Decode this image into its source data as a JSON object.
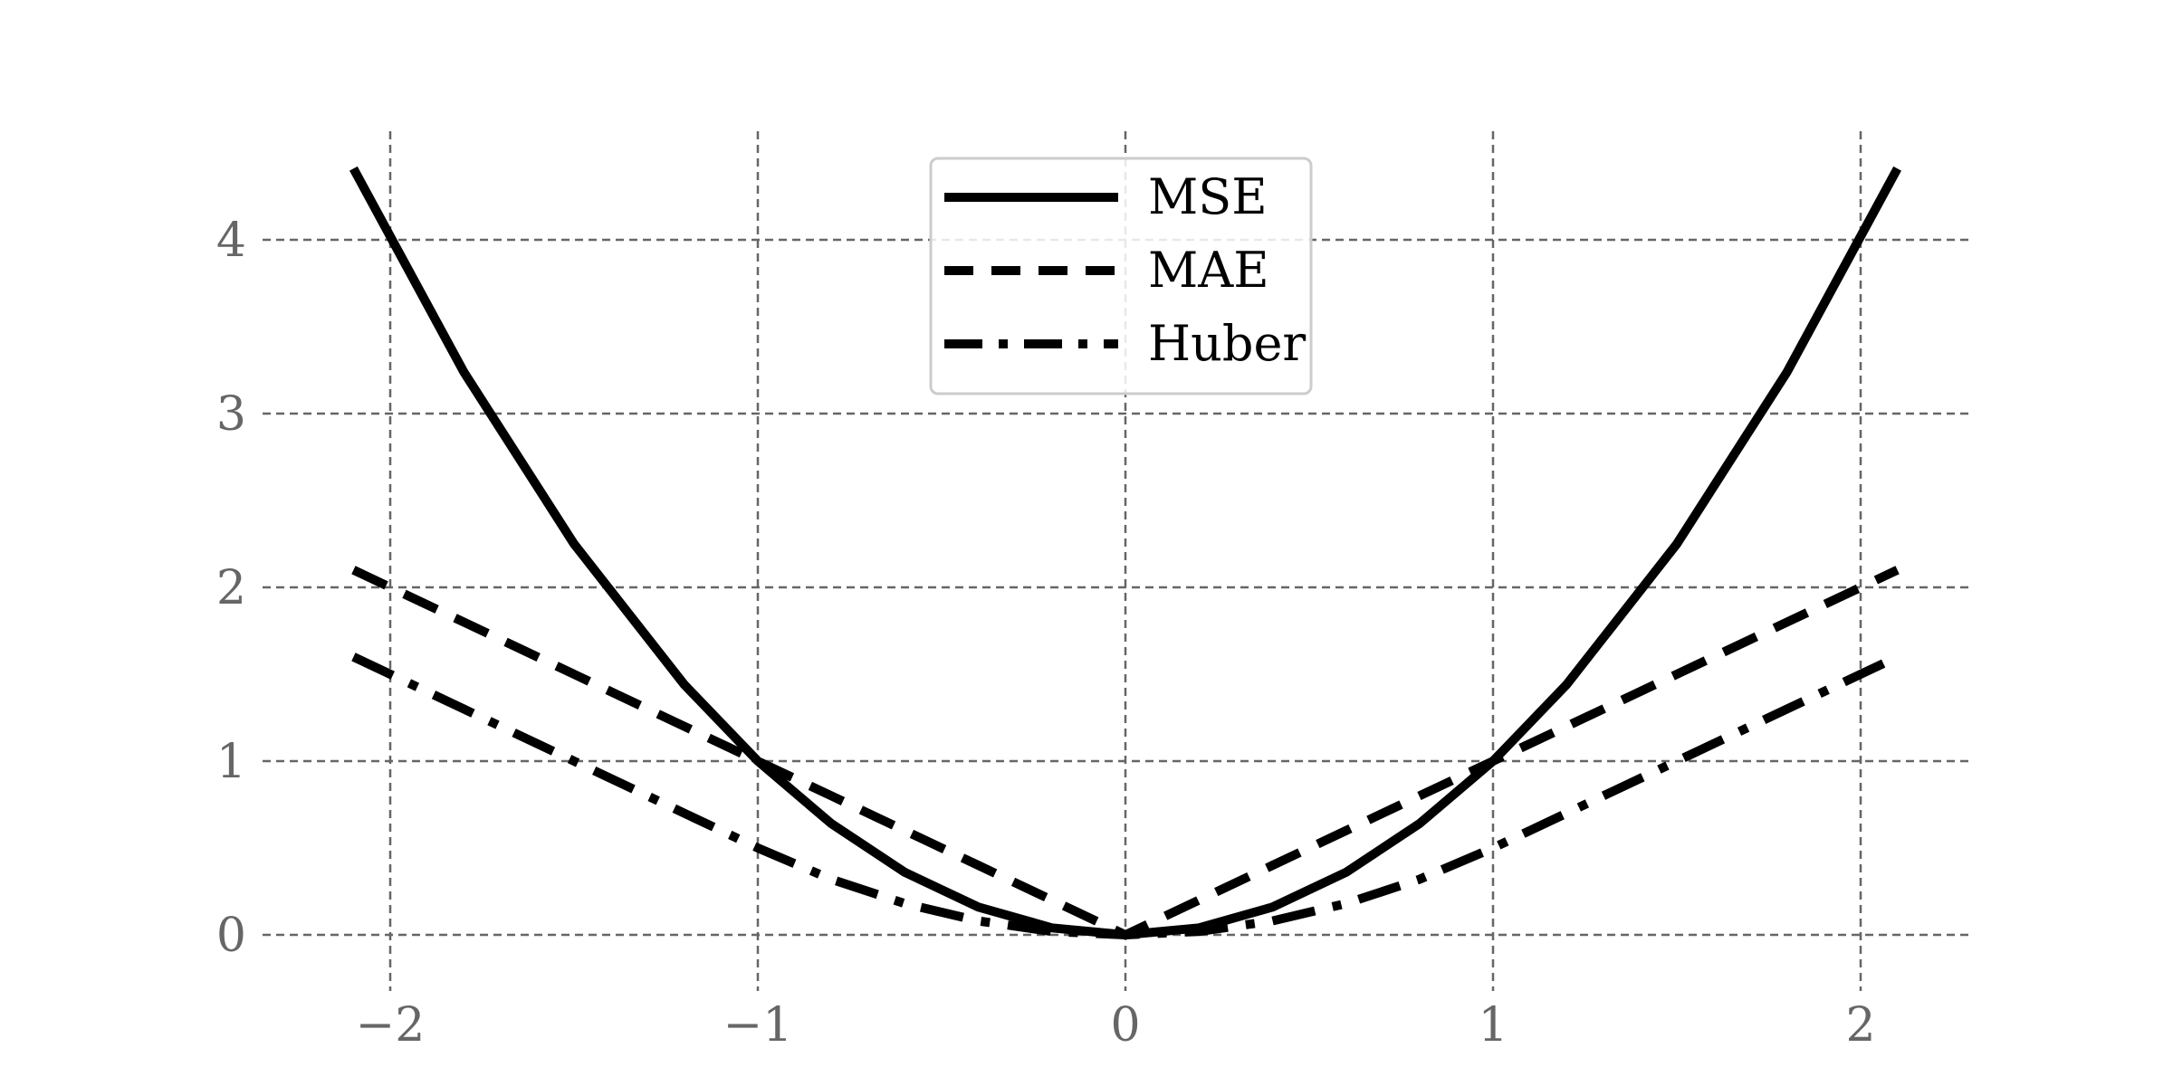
{
  "chart_data": {
    "type": "line",
    "title": "",
    "xlabel": "",
    "ylabel": "",
    "xlim": [
      -2.2,
      2.3
    ],
    "ylim": [
      -0.35,
      4.6
    ],
    "xticks": [
      -2,
      -1,
      0,
      1,
      2
    ],
    "xtick_labels": [
      "−2",
      "−1",
      "0",
      "1",
      "2"
    ],
    "yticks": [
      0,
      1,
      2,
      3,
      4
    ],
    "ytick_labels": [
      "0",
      "1",
      "2",
      "3",
      "4"
    ],
    "grid": true,
    "legend_position": "top-center",
    "x": [
      -2.1,
      -1.8,
      -1.5,
      -1.2,
      -1.0,
      -0.8,
      -0.6,
      -0.4,
      -0.2,
      0.0,
      0.2,
      0.4,
      0.6,
      0.8,
      1.0,
      1.2,
      1.5,
      1.8,
      2.1
    ],
    "series": [
      {
        "name": "MSE",
        "line_style": "solid",
        "values": [
          4.41,
          3.24,
          2.25,
          1.44,
          1.0,
          0.64,
          0.36,
          0.16,
          0.04,
          0.0,
          0.04,
          0.16,
          0.36,
          0.64,
          1.0,
          1.44,
          2.25,
          3.24,
          4.41
        ]
      },
      {
        "name": "MAE",
        "line_style": "dashed",
        "values": [
          2.1,
          1.8,
          1.5,
          1.2,
          1.0,
          0.8,
          0.6,
          0.4,
          0.2,
          0.0,
          0.2,
          0.4,
          0.6,
          0.8,
          1.0,
          1.2,
          1.5,
          1.8,
          2.1
        ]
      },
      {
        "name": "Huber",
        "line_style": "dashdot",
        "values": [
          1.6,
          1.3,
          1.0,
          0.7,
          0.5,
          0.32,
          0.18,
          0.08,
          0.02,
          0.0,
          0.02,
          0.08,
          0.18,
          0.32,
          0.5,
          0.7,
          1.0,
          1.3,
          1.6
        ]
      }
    ],
    "colors": {
      "lines": "#000000",
      "grid": "#666666",
      "tick_text": "#666666",
      "legend_border": "#cccccc"
    }
  }
}
